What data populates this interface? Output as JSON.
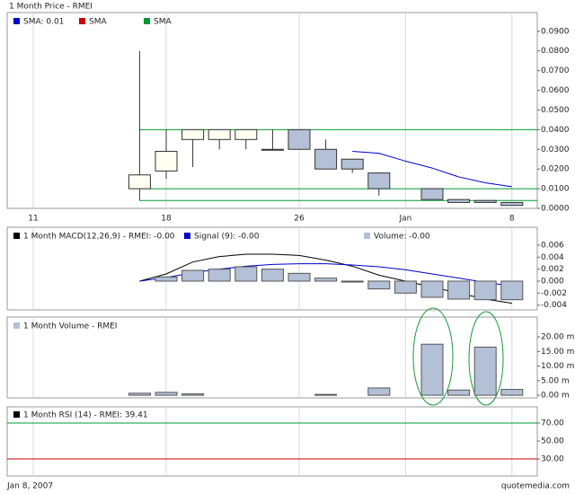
{
  "chart_data": [
    {
      "type": "candlestick",
      "title": "1 Month Price - RMEI",
      "categories": [
        "11",
        null,
        null,
        null,
        null,
        "18",
        null,
        null,
        null,
        null,
        "26",
        null,
        null,
        null,
        "Jan",
        null,
        null,
        null,
        "8"
      ],
      "open": [
        null,
        null,
        null,
        null,
        0.01,
        0.019,
        0.035,
        0.035,
        0.035,
        0.03,
        0.04,
        0.03,
        0.025,
        0.018,
        null,
        0.01,
        0.0045,
        0.004,
        0.003
      ],
      "high": [
        null,
        null,
        null,
        null,
        0.08,
        0.04,
        0.04,
        0.04,
        0.04,
        0.04,
        0.04,
        0.035,
        0.025,
        0.018,
        null,
        0.01,
        0.0045,
        0.004,
        0.003
      ],
      "low": [
        null,
        null,
        null,
        null,
        0.004,
        0.015,
        0.021,
        0.03,
        0.03,
        0.03,
        0.03,
        0.02,
        0.018,
        0.0065,
        null,
        0.0045,
        0.003,
        0.003,
        0.0015
      ],
      "close": [
        null,
        null,
        null,
        null,
        0.017,
        0.029,
        0.04,
        0.04,
        0.04,
        0.03,
        0.03,
        0.02,
        0.02,
        0.01,
        null,
        0.0045,
        0.003,
        0.003,
        0.0015
      ],
      "up_color": "#fffff0",
      "down_color": "#b3c0d6",
      "series": [
        {
          "name": "SMA: 0.01",
          "color": "#0000cc",
          "type": "line",
          "values": [
            null,
            null,
            null,
            null,
            null,
            null,
            null,
            null,
            null,
            null,
            null,
            null,
            0.029,
            0.028,
            0.024,
            0.0205,
            0.016,
            0.013,
            0.011
          ]
        },
        {
          "name": "SMA",
          "color": "#cc0000",
          "type": "line",
          "values": [
            null,
            null,
            null,
            null,
            null,
            null,
            null,
            null,
            null,
            null,
            null,
            null,
            null,
            null,
            null,
            null,
            null,
            null,
            null
          ]
        },
        {
          "name": "SMA",
          "color": "#009933",
          "type": "line",
          "values": [
            null,
            null,
            null,
            null,
            null,
            null,
            null,
            null,
            null,
            null,
            null,
            null,
            null,
            null,
            null,
            null,
            null,
            null,
            null
          ]
        }
      ],
      "hlines": [
        {
          "value": 0.04,
          "color": "#009933"
        },
        {
          "value": 0.01,
          "color": "#009933"
        },
        {
          "value": 0.004,
          "color": "#009933"
        }
      ],
      "ylim": [
        0,
        0.0995
      ],
      "yticks": [
        {
          "value": 0.09,
          "label": "0.0900"
        },
        {
          "value": 0.08,
          "label": "0.0800"
        },
        {
          "value": 0.07,
          "label": "0.0700"
        },
        {
          "value": 0.06,
          "label": "0.0600"
        },
        {
          "value": 0.05,
          "label": "0.0500"
        },
        {
          "value": 0.04,
          "label": "0.0400"
        },
        {
          "value": 0.03,
          "label": "0.0300"
        },
        {
          "value": 0.02,
          "label": "0.0200"
        },
        {
          "value": 0.01,
          "label": "0.0100"
        },
        {
          "value": 0,
          "label": "0.0000"
        }
      ]
    },
    {
      "type": "line",
      "series": [
        {
          "name": "1 Month MACD(12,26,9) - RMEI: -0.00",
          "color": "#000000",
          "type": "line",
          "values": [
            null,
            null,
            null,
            null,
            0,
            0.0012,
            0.0032,
            0.0041,
            0.0045,
            0.0045,
            0.0043,
            0.0035,
            0.0025,
            0.001,
            0,
            -0.001,
            -0.002,
            -0.003,
            -0.0037
          ]
        },
        {
          "name": "Signal (9): -0.00",
          "color": "#0000cc",
          "type": "line",
          "values": [
            null,
            null,
            null,
            null,
            0,
            0.0006,
            0.0014,
            0.002,
            0.0025,
            0.0028,
            0.0029,
            0.0029,
            0.0027,
            0.0024,
            0.0019,
            0.0012,
            0.0005,
            -0.0002,
            -0.0008
          ]
        },
        {
          "name": "Volume: -0.00",
          "color": "#b3c0d6",
          "type": "bar",
          "values": [
            null,
            null,
            null,
            null,
            null,
            0.0007,
            0.0018,
            0.002,
            0.0024,
            0.002,
            0.0013,
            0.0005,
            0,
            -0.0013,
            -0.002,
            -0.0027,
            -0.003,
            -0.0031,
            -0.0031
          ]
        }
      ],
      "ylim": [
        -0.0048,
        0.009
      ],
      "yticks": [
        0.006,
        0.004,
        0.002,
        {
          "value": 0,
          "label": "0.000"
        },
        -0.002,
        -0.004
      ]
    },
    {
      "type": "bar",
      "series": [
        {
          "name": "1 Month Volume - RMEI",
          "color": "#b3c0d6",
          "type": "bar",
          "values": [
            null,
            null,
            null,
            null,
            0.7,
            1.0,
            0.5,
            null,
            null,
            null,
            null,
            0.3,
            null,
            2.5,
            null,
            17.5,
            1.8,
            16.5,
            2.0
          ]
        }
      ],
      "ylim": [
        -0.9,
        26.8
      ],
      "yticks": [
        {
          "value": 20,
          "label": "20.00 m"
        },
        {
          "value": 15,
          "label": "15.00 m"
        },
        {
          "value": 10,
          "label": "10.00 m"
        },
        {
          "value": 5,
          "label": "5.00 m"
        },
        {
          "value": 0,
          "label": "0.00 m"
        }
      ]
    },
    {
      "type": "line",
      "series": [
        {
          "name": "1 Month  RSI (14) - RMEI: 39.41",
          "color": "#000000",
          "type": "line",
          "values": [
            null,
            null,
            null,
            null,
            null,
            null,
            null,
            null,
            null,
            null,
            null,
            null,
            null,
            null,
            null,
            null,
            null,
            null,
            null
          ]
        }
      ],
      "hlines": [
        {
          "value": 70,
          "color": "#009933"
        },
        {
          "value": 30,
          "color": "#cc0000"
        }
      ],
      "ylim": [
        11,
        88
      ],
      "yticks": [
        {
          "value": 70,
          "label": "70.00"
        },
        {
          "value": 50,
          "label": "50.00"
        },
        {
          "value": 30,
          "label": "30.00"
        }
      ]
    }
  ],
  "footer": {
    "date": "Jan 8, 2007",
    "source": "quotemedia.com"
  }
}
